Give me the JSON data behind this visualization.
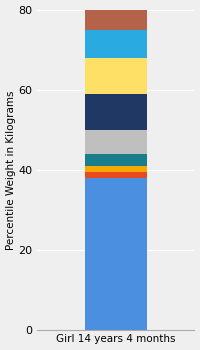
{
  "category": "Girl 14 years 4 months",
  "segments": [
    {
      "value": 38.0,
      "color": "#4A8FE0"
    },
    {
      "value": 1.5,
      "color": "#E84C1E"
    },
    {
      "value": 1.5,
      "color": "#F5A800"
    },
    {
      "value": 3.0,
      "color": "#1A7D8C"
    },
    {
      "value": 6.0,
      "color": "#C0BFC0"
    },
    {
      "value": 9.0,
      "color": "#1F3864"
    },
    {
      "value": 9.0,
      "color": "#FFE066"
    },
    {
      "value": 7.0,
      "color": "#29ABE2"
    },
    {
      "value": 5.0,
      "color": "#B5624A"
    }
  ],
  "ylabel": "Percentile Weight in Kilograms",
  "ylim": [
    0,
    80
  ],
  "yticks": [
    0,
    20,
    40,
    60,
    80
  ],
  "bg_color": "#EFEFEF",
  "bar_width": 0.55,
  "ylabel_fontsize": 7.5,
  "tick_fontsize": 8,
  "xlabel_fontsize": 7.5
}
